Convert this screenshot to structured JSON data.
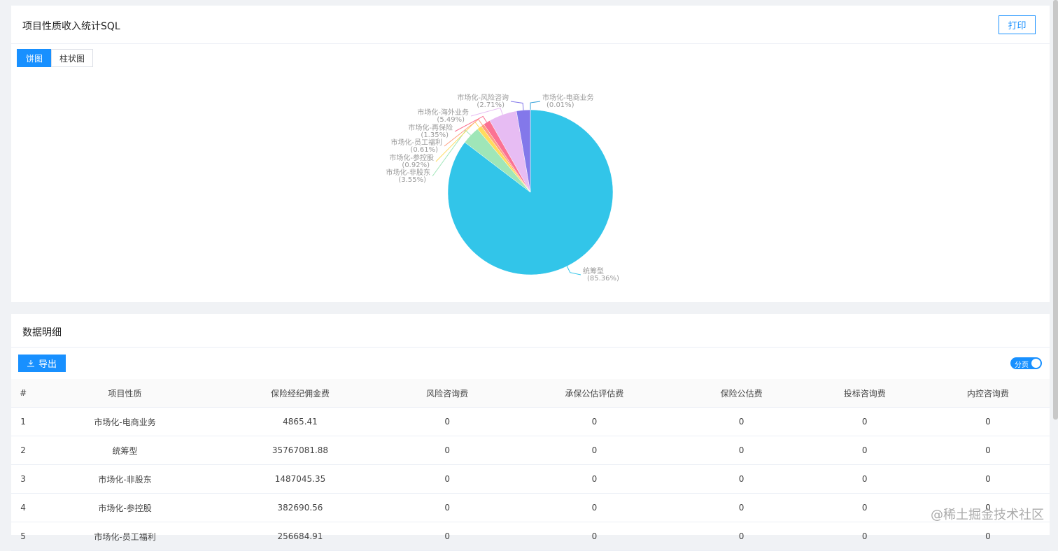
{
  "header": {
    "title": "项目性质收入统计SQL",
    "print_button": "打印"
  },
  "tabs": [
    "饼图",
    "柱状图"
  ],
  "chart_data": {
    "type": "pie",
    "categories": [
      "市场化-电商业务",
      "统筹型",
      "市场化-非股东",
      "市场化-参控股",
      "市场化-员工福利",
      "市场化-再保险",
      "市场化-海外业务",
      "市场化-风险咨询"
    ],
    "values": [
      0.01,
      85.36,
      3.55,
      0.92,
      0.61,
      1.35,
      5.49,
      2.71
    ],
    "value_labels": [
      "(0.01%)",
      "(85.36%)",
      "(3.55%)",
      "(0.92%)",
      "(0.61%)",
      "(1.35%)",
      "(5.49%)",
      "(2.71%)"
    ],
    "colors": [
      "#37a2da",
      "#32c5e9",
      "#9fe6b8",
      "#ffdb5c",
      "#ff9f7f",
      "#fb7293",
      "#e7bcf3",
      "#8378ea"
    ]
  },
  "detail": {
    "title": "数据明细",
    "export_button": "导出",
    "paging_switch": "分页"
  },
  "table": {
    "columns": [
      "#",
      "项目性质",
      "保险经纪佣金费",
      "风险咨询费",
      "承保公估评估费",
      "保险公估费",
      "投标咨询费",
      "内控咨询费"
    ],
    "rows": [
      [
        "1",
        "市场化-电商业务",
        "4865.41",
        "0",
        "0",
        "0",
        "0",
        "0"
      ],
      [
        "2",
        "统筹型",
        "35767081.88",
        "0",
        "0",
        "0",
        "0",
        "0"
      ],
      [
        "3",
        "市场化-非股东",
        "1487045.35",
        "0",
        "0",
        "0",
        "0",
        "0"
      ],
      [
        "4",
        "市场化-参控股",
        "382690.56",
        "0",
        "0",
        "0",
        "0",
        "0"
      ],
      [
        "5",
        "市场化-员工福利",
        "256684.91",
        "0",
        "0",
        "0",
        "0",
        "0"
      ]
    ]
  },
  "watermark": "@稀土掘金技术社区"
}
